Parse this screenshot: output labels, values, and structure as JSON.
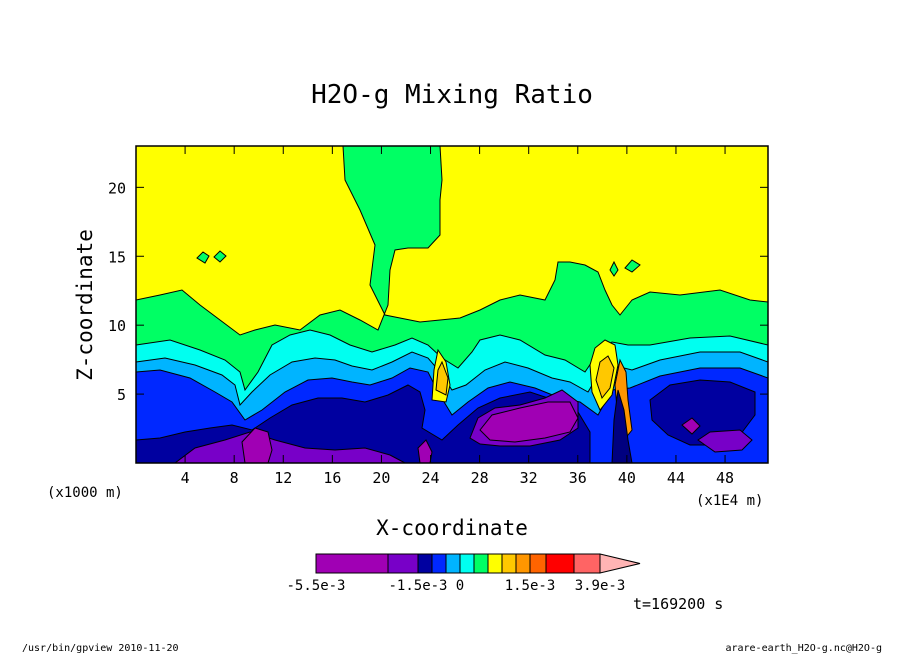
{
  "chart_data": {
    "type": "contour",
    "title": "H2O-g Mixing Ratio",
    "xlabel": "X-coordinate",
    "ylabel": "Z-coordinate",
    "x_unit_left": "(x1000 m)",
    "x_unit_right": "(x1E4 m)",
    "xlim": [
      0,
      51.5
    ],
    "ylim": [
      0,
      23
    ],
    "x_ticks": [
      4,
      8,
      12,
      16,
      20,
      24,
      28,
      32,
      36,
      40,
      44,
      48
    ],
    "y_ticks": [
      5,
      10,
      15,
      20
    ],
    "colorbar": {
      "levels": [
        -0.0055,
        -0.0015,
        -0.001,
        -0.0005,
        0,
        0.0003,
        0.0006,
        0.0009,
        0.0012,
        0.0015,
        0.0021,
        0.0027,
        0.0033,
        0.0039
      ],
      "colors": [
        "#a000b4",
        "#7800c8",
        "#0000a0",
        "#0028ff",
        "#00b4ff",
        "#00fff0",
        "#00ff64",
        "#ffff00",
        "#ffc800",
        "#ff9600",
        "#ff6400",
        "#ff0000",
        "#ff6464",
        "#ffb4b4"
      ],
      "labels": [
        "-5.5e-3",
        "-1.5e-3",
        "0",
        "1.5e-3",
        "3.9e-3"
      ]
    },
    "annotation": "t=169200 s"
  },
  "footer": {
    "left": "/usr/bin/gpview  2010-11-20",
    "right": "arare-earth_H2O-g.nc@H2O-g"
  },
  "colors": {
    "yellow": "#ffff00",
    "green": "#00ff64",
    "cyan": "#00fff0",
    "light_blue": "#00b4ff",
    "blue": "#0028ff",
    "navy": "#0000a0",
    "violet": "#7800c8",
    "purple": "#a000b4"
  }
}
